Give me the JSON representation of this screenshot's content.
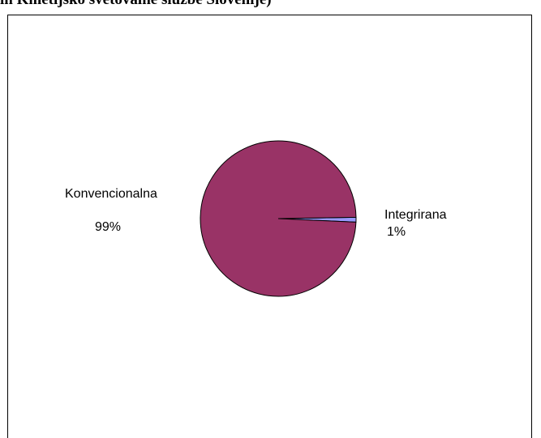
{
  "chart_data": {
    "type": "pie",
    "title": "in Kmetijsko svetovalne službe Slovenije)",
    "categories": [
      "Konvencionalna",
      "Integrirana"
    ],
    "values": [
      99,
      1
    ],
    "value_labels": [
      "99%",
      "1%"
    ],
    "colors": [
      "#993366",
      "#9999ff"
    ]
  }
}
